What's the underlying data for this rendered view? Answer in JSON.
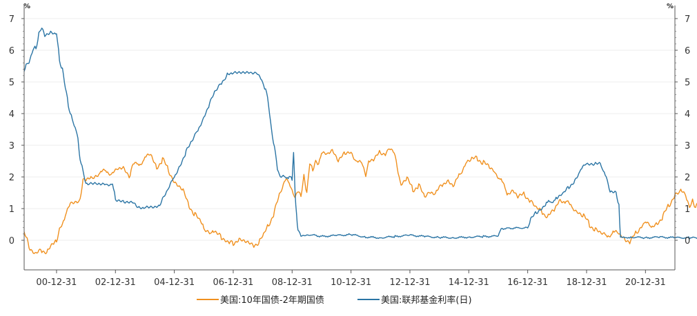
{
  "chart_data": {
    "type": "line",
    "unit_left": "%",
    "unit_right": "%",
    "yticks": [
      0,
      1,
      2,
      3,
      4,
      5,
      6,
      7
    ],
    "ylim": [
      -1,
      7.4
    ],
    "xlim": [
      1999.9,
      2022.0
    ],
    "x_ticks": [
      {
        "label": "00-12-31",
        "x": 2001.0
      },
      {
        "label": "02-12-31",
        "x": 2003.0
      },
      {
        "label": "04-12-31",
        "x": 2005.0
      },
      {
        "label": "06-12-31",
        "x": 2007.0
      },
      {
        "label": "08-12-31",
        "x": 2009.0
      },
      {
        "label": "10-12-31",
        "x": 2011.0
      },
      {
        "label": "12-12-31",
        "x": 2013.0
      },
      {
        "label": "14-12-31",
        "x": 2015.0
      },
      {
        "label": "16-12-31",
        "x": 2017.0
      },
      {
        "label": "18-12-31",
        "x": 2019.0
      },
      {
        "label": "20-12-31",
        "x": 2021.0
      }
    ],
    "grid": true,
    "legend_position": "bottom",
    "series": [
      {
        "name": "美国:10年国债-2年期国债",
        "color": "#F0901E",
        "points": [
          [
            1999.9,
            0.3
          ],
          [
            2000.0,
            0.1
          ],
          [
            2000.1,
            -0.3
          ],
          [
            2000.3,
            -0.45
          ],
          [
            2000.5,
            -0.3
          ],
          [
            2000.7,
            -0.35
          ],
          [
            2000.9,
            -0.1
          ],
          [
            2001.0,
            0.0
          ],
          [
            2001.1,
            0.4
          ],
          [
            2001.3,
            0.75
          ],
          [
            2001.5,
            1.2
          ],
          [
            2001.8,
            1.25
          ],
          [
            2001.9,
            1.85
          ],
          [
            2002.0,
            1.9
          ],
          [
            2002.2,
            2.0
          ],
          [
            2002.5,
            2.15
          ],
          [
            2002.7,
            2.2
          ],
          [
            2002.9,
            2.1
          ],
          [
            2003.1,
            2.25
          ],
          [
            2003.3,
            2.3
          ],
          [
            2003.5,
            2.0
          ],
          [
            2003.6,
            2.4
          ],
          [
            2003.8,
            2.4
          ],
          [
            2004.0,
            2.6
          ],
          [
            2004.2,
            2.7
          ],
          [
            2004.4,
            2.3
          ],
          [
            2004.6,
            2.55
          ],
          [
            2004.8,
            2.2
          ],
          [
            2005.0,
            1.85
          ],
          [
            2005.3,
            1.6
          ],
          [
            2005.5,
            1.1
          ],
          [
            2005.7,
            0.8
          ],
          [
            2006.0,
            0.4
          ],
          [
            2006.3,
            0.25
          ],
          [
            2006.6,
            0.1
          ],
          [
            2006.9,
            -0.05
          ],
          [
            2007.0,
            -0.1
          ],
          [
            2007.2,
            0.05
          ],
          [
            2007.5,
            -0.05
          ],
          [
            2007.7,
            -0.15
          ],
          [
            2007.9,
            -0.05
          ],
          [
            2008.0,
            0.1
          ],
          [
            2008.2,
            0.5
          ],
          [
            2008.4,
            0.9
          ],
          [
            2008.6,
            1.5
          ],
          [
            2008.8,
            2.0
          ],
          [
            2008.9,
            1.8
          ],
          [
            2009.0,
            1.5
          ],
          [
            2009.1,
            1.3
          ],
          [
            2009.2,
            1.6
          ],
          [
            2009.3,
            1.45
          ],
          [
            2009.4,
            2.05
          ],
          [
            2009.5,
            1.45
          ],
          [
            2009.6,
            2.4
          ],
          [
            2009.7,
            2.2
          ],
          [
            2009.8,
            2.55
          ],
          [
            2009.9,
            2.45
          ],
          [
            2010.0,
            2.75
          ],
          [
            2010.2,
            2.7
          ],
          [
            2010.4,
            2.85
          ],
          [
            2010.6,
            2.5
          ],
          [
            2010.8,
            2.75
          ],
          [
            2011.0,
            2.8
          ],
          [
            2011.2,
            2.45
          ],
          [
            2011.4,
            2.4
          ],
          [
            2011.5,
            2.1
          ],
          [
            2011.6,
            2.5
          ],
          [
            2011.8,
            2.55
          ],
          [
            2012.0,
            2.8
          ],
          [
            2012.2,
            2.75
          ],
          [
            2012.3,
            2.85
          ],
          [
            2012.5,
            2.7
          ],
          [
            2012.6,
            2.2
          ],
          [
            2012.7,
            1.75
          ],
          [
            2012.9,
            1.95
          ],
          [
            2013.1,
            1.6
          ],
          [
            2013.3,
            1.75
          ],
          [
            2013.5,
            1.35
          ],
          [
            2013.7,
            1.55
          ],
          [
            2013.9,
            1.5
          ],
          [
            2014.1,
            1.75
          ],
          [
            2014.3,
            1.9
          ],
          [
            2014.5,
            1.7
          ],
          [
            2014.7,
            2.1
          ],
          [
            2014.9,
            2.45
          ],
          [
            2015.1,
            2.55
          ],
          [
            2015.3,
            2.6
          ],
          [
            2015.5,
            2.45
          ],
          [
            2015.7,
            2.3
          ],
          [
            2015.9,
            2.15
          ],
          [
            2016.1,
            1.9
          ],
          [
            2016.3,
            1.45
          ],
          [
            2016.5,
            1.6
          ],
          [
            2016.7,
            1.35
          ],
          [
            2016.9,
            1.45
          ],
          [
            2017.1,
            1.25
          ],
          [
            2017.3,
            1.0
          ],
          [
            2017.5,
            0.9
          ],
          [
            2017.7,
            0.75
          ],
          [
            2017.9,
            0.95
          ],
          [
            2018.1,
            1.3
          ],
          [
            2018.3,
            1.2
          ],
          [
            2018.5,
            1.05
          ],
          [
            2018.7,
            0.9
          ],
          [
            2018.9,
            0.75
          ],
          [
            2019.1,
            0.5
          ],
          [
            2019.3,
            0.35
          ],
          [
            2019.5,
            0.2
          ],
          [
            2019.7,
            0.15
          ],
          [
            2019.9,
            0.25
          ],
          [
            2020.1,
            0.2
          ],
          [
            2020.3,
            0.05
          ],
          [
            2020.5,
            -0.05
          ],
          [
            2020.7,
            0.25
          ],
          [
            2020.9,
            0.5
          ],
          [
            2021.0,
            0.55
          ],
          [
            2021.2,
            0.4
          ],
          [
            2021.4,
            0.55
          ],
          [
            2021.6,
            0.75
          ],
          [
            2021.8,
            1.1
          ],
          [
            2022.0,
            1.45
          ],
          [
            2022.2,
            1.55
          ],
          [
            2022.4,
            1.35
          ],
          [
            2022.5,
            1.1
          ],
          [
            2022.6,
            1.25
          ],
          [
            2022.7,
            0.95
          ],
          [
            2022.8,
            1.25
          ],
          [
            2022.9,
            0.75
          ]
        ]
      },
      {
        "name": "美国:联邦基金利率(日)",
        "color": "#2A74A4",
        "points": [
          [
            1999.9,
            5.3
          ],
          [
            2000.0,
            5.6
          ],
          [
            2000.1,
            5.7
          ],
          [
            2000.2,
            6.0
          ],
          [
            2000.3,
            6.1
          ],
          [
            2000.4,
            6.5
          ],
          [
            2000.5,
            6.7
          ],
          [
            2000.6,
            6.5
          ],
          [
            2000.8,
            6.6
          ],
          [
            2000.9,
            6.55
          ],
          [
            2001.0,
            6.5
          ],
          [
            2001.1,
            5.7
          ],
          [
            2001.2,
            5.4
          ],
          [
            2001.3,
            4.8
          ],
          [
            2001.4,
            4.3
          ],
          [
            2001.5,
            3.9
          ],
          [
            2001.6,
            3.6
          ],
          [
            2001.7,
            3.4
          ],
          [
            2001.75,
            3.0
          ],
          [
            2001.8,
            2.5
          ],
          [
            2001.9,
            2.2
          ],
          [
            2002.0,
            1.8
          ],
          [
            2002.1,
            1.75
          ],
          [
            2002.4,
            1.75
          ],
          [
            2002.7,
            1.75
          ],
          [
            2002.9,
            1.75
          ],
          [
            2003.0,
            1.3
          ],
          [
            2003.3,
            1.25
          ],
          [
            2003.6,
            1.25
          ],
          [
            2003.8,
            1.05
          ],
          [
            2004.0,
            1.0
          ],
          [
            2004.3,
            1.0
          ],
          [
            2004.5,
            1.05
          ],
          [
            2004.6,
            1.3
          ],
          [
            2004.8,
            1.6
          ],
          [
            2005.0,
            2.0
          ],
          [
            2005.2,
            2.4
          ],
          [
            2005.4,
            2.8
          ],
          [
            2005.6,
            3.1
          ],
          [
            2005.8,
            3.5
          ],
          [
            2006.0,
            3.9
          ],
          [
            2006.2,
            4.3
          ],
          [
            2006.4,
            4.7
          ],
          [
            2006.6,
            5.0
          ],
          [
            2006.8,
            5.25
          ],
          [
            2007.0,
            5.25
          ],
          [
            2007.3,
            5.25
          ],
          [
            2007.6,
            5.25
          ],
          [
            2007.8,
            5.25
          ],
          [
            2008.0,
            5.0
          ],
          [
            2008.1,
            4.75
          ],
          [
            2008.2,
            4.3
          ],
          [
            2008.3,
            3.5
          ],
          [
            2008.4,
            2.9
          ],
          [
            2008.5,
            2.3
          ],
          [
            2008.6,
            2.0
          ],
          [
            2008.7,
            2.0
          ],
          [
            2008.8,
            2.0
          ],
          [
            2008.9,
            2.0
          ],
          [
            2009.0,
            1.9
          ],
          [
            2009.05,
            2.8
          ],
          [
            2009.1,
            1.5
          ],
          [
            2009.15,
            0.8
          ],
          [
            2009.2,
            0.3
          ],
          [
            2009.3,
            0.15
          ],
          [
            2009.6,
            0.18
          ],
          [
            2010.0,
            0.12
          ],
          [
            2010.5,
            0.15
          ],
          [
            2011.0,
            0.18
          ],
          [
            2011.5,
            0.1
          ],
          [
            2012.0,
            0.08
          ],
          [
            2012.5,
            0.12
          ],
          [
            2013.0,
            0.16
          ],
          [
            2013.5,
            0.12
          ],
          [
            2014.0,
            0.09
          ],
          [
            2014.5,
            0.08
          ],
          [
            2015.0,
            0.1
          ],
          [
            2015.5,
            0.12
          ],
          [
            2016.0,
            0.13
          ],
          [
            2016.1,
            0.37
          ],
          [
            2016.5,
            0.38
          ],
          [
            2017.0,
            0.4
          ],
          [
            2017.1,
            0.65
          ],
          [
            2017.3,
            0.9
          ],
          [
            2017.6,
            1.15
          ],
          [
            2018.0,
            1.3
          ],
          [
            2018.2,
            1.45
          ],
          [
            2018.4,
            1.7
          ],
          [
            2018.6,
            1.9
          ],
          [
            2018.8,
            2.2
          ],
          [
            2019.0,
            2.4
          ],
          [
            2019.3,
            2.4
          ],
          [
            2019.5,
            2.4
          ],
          [
            2019.6,
            2.1
          ],
          [
            2019.7,
            1.9
          ],
          [
            2019.8,
            1.55
          ],
          [
            2020.0,
            1.55
          ],
          [
            2020.1,
            1.1
          ],
          [
            2020.15,
            0.08
          ],
          [
            2020.5,
            0.1
          ],
          [
            2021.0,
            0.08
          ],
          [
            2021.5,
            0.1
          ],
          [
            2022.0,
            0.08
          ],
          [
            2022.5,
            0.08
          ],
          [
            2022.9,
            0.08
          ]
        ]
      }
    ]
  }
}
